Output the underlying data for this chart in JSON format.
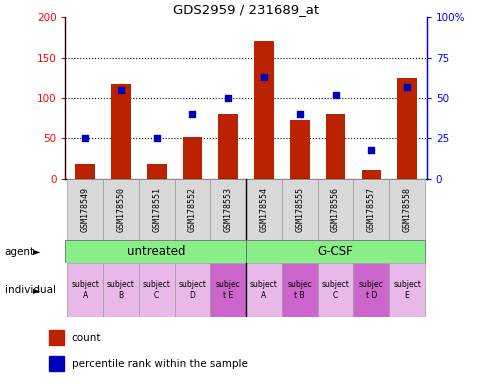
{
  "title": "GDS2959 / 231689_at",
  "samples": [
    "GSM178549",
    "GSM178550",
    "GSM178551",
    "GSM178552",
    "GSM178553",
    "GSM178554",
    "GSM178555",
    "GSM178556",
    "GSM178557",
    "GSM178558"
  ],
  "counts": [
    18,
    117,
    18,
    52,
    80,
    170,
    73,
    80,
    10,
    125
  ],
  "percentile_ranks": [
    25,
    55,
    25,
    40,
    50,
    63,
    40,
    52,
    18,
    57
  ],
  "ylim_left": [
    0,
    200
  ],
  "ylim_right": [
    0,
    100
  ],
  "yticks_left": [
    0,
    50,
    100,
    150,
    200
  ],
  "ytick_labels_left": [
    "0",
    "50",
    "100",
    "150",
    "200"
  ],
  "ytick_labels_right": [
    "0",
    "25",
    "50",
    "75",
    "100%"
  ],
  "individuals": [
    "subject\nA",
    "subject\nB",
    "subject\nC",
    "subject\nD",
    "subjec\nt E",
    "subject\nA",
    "subjec\nt B",
    "subject\nC",
    "subjec\nt D",
    "subject\nE"
  ],
  "individual_colors": [
    "#E8B8E8",
    "#E8B8E8",
    "#E8B8E8",
    "#E8B8E8",
    "#CC66CC",
    "#E8B8E8",
    "#CC66CC",
    "#E8B8E8",
    "#CC66CC",
    "#E8B8E8"
  ],
  "bar_color": "#BB2200",
  "dot_color": "#0000BB",
  "bar_width": 0.55,
  "agent_color": "#88EE88",
  "sample_bg": "#D8D8D8"
}
